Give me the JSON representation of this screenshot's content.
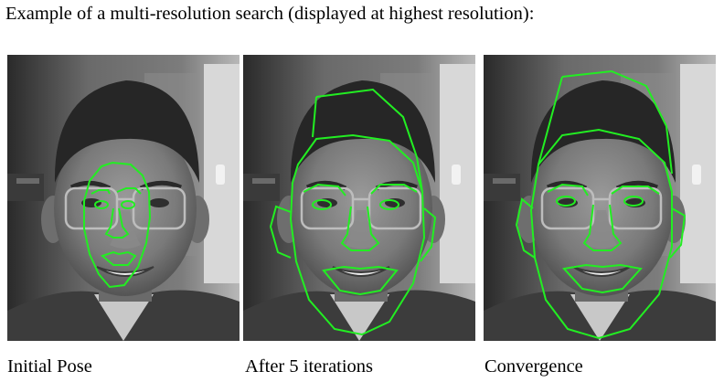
{
  "heading": "Example of a multi-resolution search (displayed at highest resolution):",
  "panels": [
    {
      "caption": "Initial Pose",
      "stage": "initial",
      "image": "face-photo-with-model-overlay"
    },
    {
      "caption": "After 5 iterations",
      "stage": "iteration-5",
      "image": "face-photo-with-model-overlay"
    },
    {
      "caption": "Convergence",
      "stage": "converged",
      "image": "face-photo-with-model-overlay"
    }
  ],
  "colors": {
    "overlay": "#22ee22",
    "background": "#ffffff",
    "text": "#000000"
  }
}
